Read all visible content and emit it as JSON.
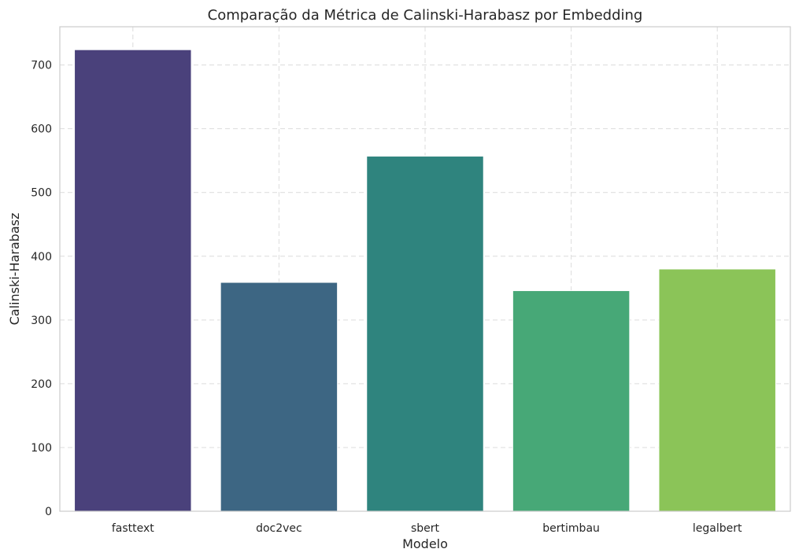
{
  "chart_data": {
    "type": "bar",
    "title": "Comparação da Métrica de Calinski-Harabasz por Embedding",
    "xlabel": "Modelo",
    "ylabel": "Calinski-Harabasz",
    "categories": [
      "fasttext",
      "doc2vec",
      "sbert",
      "bertimbau",
      "legalbert"
    ],
    "values": [
      724,
      359,
      557,
      346,
      380
    ],
    "colors": [
      "#4a417b",
      "#3d6683",
      "#2f847e",
      "#47a877",
      "#8bc458"
    ],
    "ylim": [
      0,
      760
    ],
    "yticks": [
      0,
      100,
      200,
      300,
      400,
      500,
      600,
      700
    ],
    "grid": true,
    "legend": "none"
  }
}
